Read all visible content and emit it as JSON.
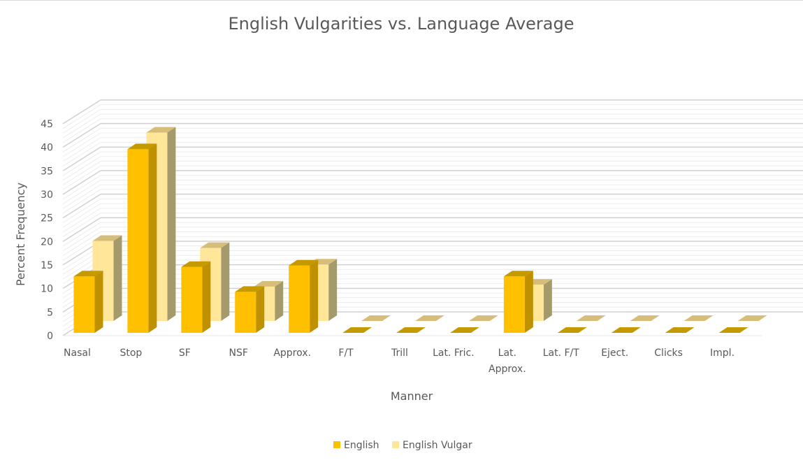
{
  "chart_data": {
    "type": "bar",
    "title": "English Vulgarities vs. Language Average",
    "xlabel": "Manner",
    "ylabel": "Percent Frequency",
    "ylim": [
      0,
      45
    ],
    "yticks": [
      0,
      5,
      10,
      15,
      20,
      25,
      30,
      35,
      40,
      45
    ],
    "grid": true,
    "legend": "bottom",
    "categories": [
      "Nasal",
      "Stop",
      "SF",
      "NSF",
      "Approx.",
      "F/T",
      "Trill",
      "Lat. Fric.",
      "Lat. Approx.",
      "Lat. F/T",
      "Eject.",
      "Clicks",
      "Impl."
    ],
    "series": [
      {
        "name": "English",
        "values": [
          12,
          39,
          14,
          8.7,
          14.3,
          0,
          0,
          0,
          12,
          0,
          0,
          0,
          0
        ],
        "color": "#FFC000",
        "side_color": "#BF9000",
        "top_color": "#C49A00"
      },
      {
        "name": "English Vulgar",
        "values": [
          17,
          40,
          15.5,
          7.3,
          12,
          0,
          0,
          0,
          7.7,
          0,
          0,
          0,
          0
        ],
        "color": "#FFE699",
        "side_color": "#A59A6A",
        "top_color": "#D6BE7A"
      }
    ]
  }
}
